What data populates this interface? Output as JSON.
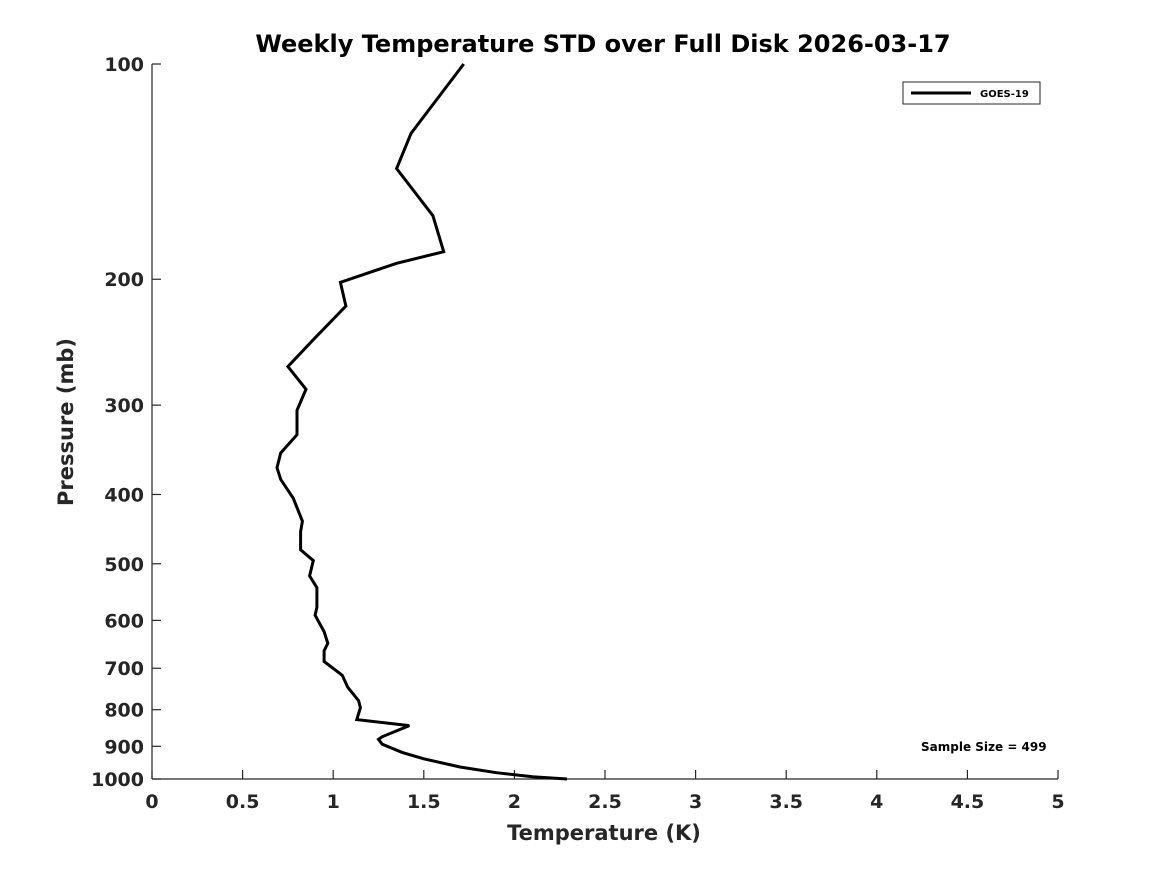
{
  "chart_data": {
    "type": "line",
    "title": "Weekly Temperature STD over Full Disk 2026-03-17",
    "xlabel": "Temperature (K)",
    "ylabel": "Pressure (mb)",
    "xlim": [
      0,
      5
    ],
    "ylim": [
      100,
      1000
    ],
    "y_scale": "log",
    "y_reversed": true,
    "grid": false,
    "x_ticks": [
      0,
      0.5,
      1,
      1.5,
      2,
      2.5,
      3,
      3.5,
      4,
      4.5,
      5
    ],
    "x_tick_labels": [
      "0",
      "0.5",
      "1",
      "1.5",
      "2",
      "2.5",
      "3",
      "3.5",
      "4",
      "4.5",
      "5"
    ],
    "y_ticks": [
      100,
      200,
      300,
      400,
      500,
      600,
      700,
      800,
      900,
      1000
    ],
    "y_tick_labels": [
      "100",
      "200",
      "300",
      "400",
      "500",
      "600",
      "700",
      "800",
      "900",
      "1000"
    ],
    "legend": {
      "placement": "top-right",
      "entries": [
        "GOES-19"
      ]
    },
    "annotations": [
      {
        "text": "Sample Size = 499",
        "placement": "bottom-right"
      }
    ],
    "series": [
      {
        "name": "GOES-19",
        "color": "#000000",
        "x": [
          1.72,
          1.43,
          1.35,
          1.55,
          1.61,
          1.35,
          1.04,
          1.07,
          0.89,
          0.75,
          0.85,
          0.8,
          0.8,
          0.71,
          0.69,
          0.71,
          0.78,
          0.83,
          0.82,
          0.82,
          0.89,
          0.87,
          0.91,
          0.91,
          0.9,
          0.95,
          0.97,
          0.95,
          0.95,
          1.05,
          1.08,
          1.14,
          1.15,
          1.14,
          1.13,
          1.42,
          1.27,
          1.25,
          1.27,
          1.38,
          1.5,
          1.7,
          1.9,
          2.1,
          2.29
        ],
        "y": [
          100,
          125,
          140,
          163,
          183,
          190,
          202,
          218,
          243,
          265,
          285,
          305,
          330,
          350,
          367,
          381,
          405,
          436,
          451,
          478,
          495,
          520,
          540,
          575,
          590,
          622,
          646,
          662,
          685,
          716,
          744,
          777,
          795,
          810,
          826,
          842,
          873,
          880,
          894,
          918,
          937,
          962,
          980,
          993,
          1000
        ]
      }
    ]
  }
}
